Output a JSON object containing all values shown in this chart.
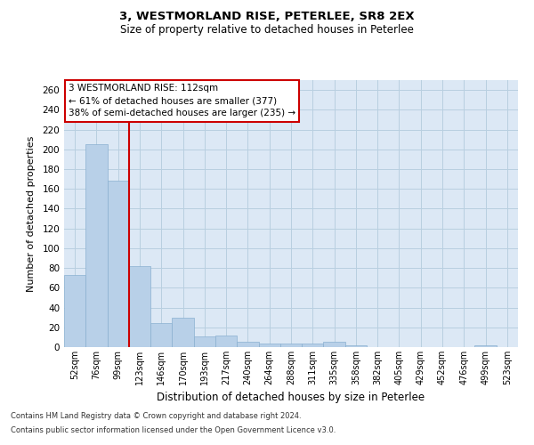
{
  "title1": "3, WESTMORLAND RISE, PETERLEE, SR8 2EX",
  "title2": "Size of property relative to detached houses in Peterlee",
  "xlabel": "Distribution of detached houses by size in Peterlee",
  "ylabel": "Number of detached properties",
  "footnote1": "Contains HM Land Registry data © Crown copyright and database right 2024.",
  "footnote2": "Contains public sector information licensed under the Open Government Licence v3.0.",
  "annotation_line1": "3 WESTMORLAND RISE: 112sqm",
  "annotation_line2": "← 61% of detached houses are smaller (377)",
  "annotation_line3": "38% of semi-detached houses are larger (235) →",
  "bar_color": "#b8d0e8",
  "bar_edge_color": "#8ab0d0",
  "vline_color": "#cc0000",
  "annotation_box_edge": "#cc0000",
  "background_color": "#ffffff",
  "plot_bg_color": "#dce8f5",
  "grid_color": "#b8cfe0",
  "categories": [
    "52sqm",
    "76sqm",
    "99sqm",
    "123sqm",
    "146sqm",
    "170sqm",
    "193sqm",
    "217sqm",
    "240sqm",
    "264sqm",
    "288sqm",
    "311sqm",
    "335sqm",
    "358sqm",
    "382sqm",
    "405sqm",
    "429sqm",
    "452sqm",
    "476sqm",
    "499sqm",
    "523sqm"
  ],
  "values": [
    73,
    205,
    168,
    82,
    24,
    30,
    11,
    12,
    5,
    4,
    4,
    4,
    5,
    2,
    0,
    0,
    0,
    0,
    0,
    2,
    0
  ],
  "ylim": [
    0,
    270
  ],
  "yticks": [
    0,
    20,
    40,
    60,
    80,
    100,
    120,
    140,
    160,
    180,
    200,
    220,
    240,
    260
  ],
  "vline_x_index": 2.5
}
